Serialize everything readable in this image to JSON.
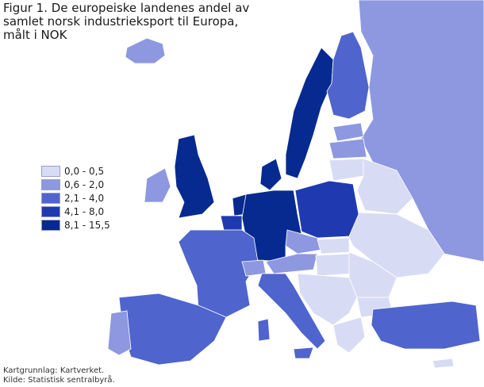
{
  "title": {
    "line1": "Figur 1. De europeiske landenes andel av",
    "line2": "samlet norsk industrieksport til Europa,",
    "line3": "målt i NOK"
  },
  "legend": {
    "items": [
      {
        "label": "0,0 - 0,5",
        "color": "#d8dbf4"
      },
      {
        "label": "0,6 - 2,0",
        "color": "#8d98e0"
      },
      {
        "label": "2,1 - 4,0",
        "color": "#4f64cc"
      },
      {
        "label": "4,1 - 8,0",
        "color": "#1f3ab0"
      },
      {
        "label": "8,1 - 15,5",
        "color": "#072a90"
      }
    ]
  },
  "source": {
    "line1": "Kartgrunnlag: Kartverket.",
    "line2": "Kilde: Statistisk sentralbyrå."
  }
}
